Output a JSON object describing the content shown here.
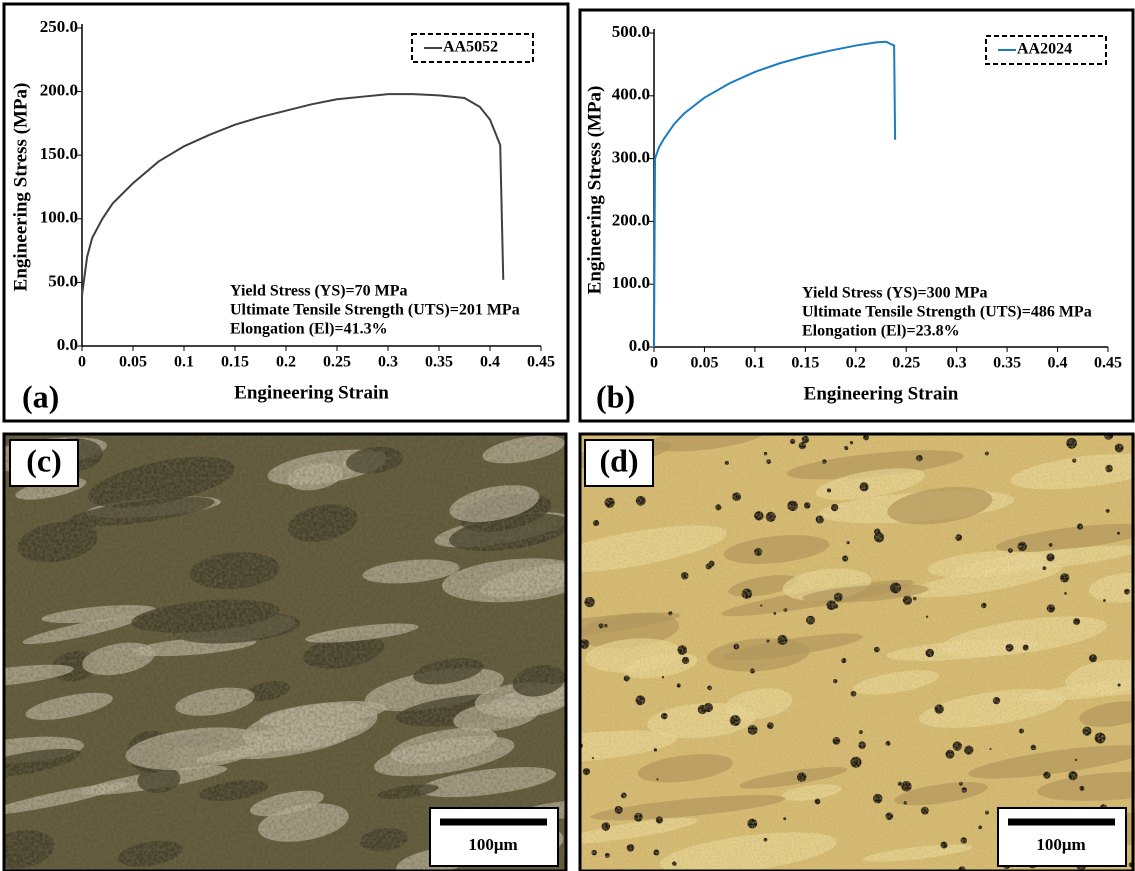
{
  "chart_data": [
    {
      "type": "line",
      "panel_label": "(a)",
      "xlabel": "Engineering Strain",
      "ylabel": "Engineering Stress (MPa)",
      "xlim": [
        0,
        0.45
      ],
      "ylim": [
        0,
        250
      ],
      "xticks": [
        0,
        0.05,
        0.1,
        0.15,
        0.2,
        0.25,
        0.3,
        0.35,
        0.4,
        0.45
      ],
      "yticks": [
        {
          "value": 0,
          "label": "0.0"
        },
        {
          "value": 50,
          "label": "50.0"
        },
        {
          "value": 100,
          "label": "100.0"
        },
        {
          "value": 150,
          "label": "150.0"
        },
        {
          "value": 200,
          "label": "200.0"
        },
        {
          "value": 250,
          "label": "250.0"
        }
      ],
      "x": [
        0,
        0.005,
        0.01,
        0.02,
        0.03,
        0.05,
        0.075,
        0.1,
        0.125,
        0.15,
        0.175,
        0.2,
        0.225,
        0.25,
        0.275,
        0.3,
        0.325,
        0.35,
        0.375,
        0.39,
        0.4,
        0.405,
        0.41,
        0.413
      ],
      "series": [
        {
          "name": "AA5052",
          "color": "#404040",
          "values": [
            40,
            70,
            85,
            100,
            112,
            128,
            145,
            157,
            166,
            174,
            180,
            185,
            190,
            194,
            196,
            198,
            198,
            197,
            195,
            188,
            178,
            168,
            158,
            52
          ]
        }
      ],
      "annotations": [
        "Yield Stress (YS)=70 MPa",
        "Ultimate Tensile Strength (UTS)=201 MPa",
        "Elongation (El)=41.3%"
      ]
    },
    {
      "type": "line",
      "panel_label": "(b)",
      "xlabel": "Engineering Strain",
      "ylabel": "Engineering Stress (MPa)",
      "xlim": [
        0,
        0.45
      ],
      "ylim": [
        0,
        500
      ],
      "xticks": [
        0,
        0.05,
        0.1,
        0.15,
        0.2,
        0.25,
        0.3,
        0.35,
        0.4,
        0.45
      ],
      "yticks": [
        {
          "value": 0,
          "label": "0.0"
        },
        {
          "value": 100,
          "label": "100.0"
        },
        {
          "value": 200,
          "label": "200.0"
        },
        {
          "value": 300,
          "label": "300.0"
        },
        {
          "value": 400,
          "label": "400.0"
        },
        {
          "value": 500,
          "label": "500.0"
        }
      ],
      "x": [
        0,
        0.001,
        0.005,
        0.01,
        0.02,
        0.03,
        0.05,
        0.075,
        0.1,
        0.125,
        0.15,
        0.175,
        0.2,
        0.22,
        0.23,
        0.238,
        0.239
      ],
      "series": [
        {
          "name": "AA2024",
          "color": "#1a7cc1",
          "values": [
            0,
            300,
            318,
            332,
            355,
            372,
            397,
            420,
            438,
            452,
            463,
            472,
            480,
            485,
            486,
            480,
            330
          ]
        }
      ],
      "annotations": [
        "Yield Stress (YS)=300 MPa",
        "Ultimate Tensile Strength (UTS)=486 MPa",
        "Elongation (El)=23.8%"
      ]
    }
  ],
  "micrographs": [
    {
      "panel_label": "(c)",
      "scale_bar": "100μm"
    },
    {
      "panel_label": "(d)",
      "scale_bar": "100μm"
    }
  ]
}
